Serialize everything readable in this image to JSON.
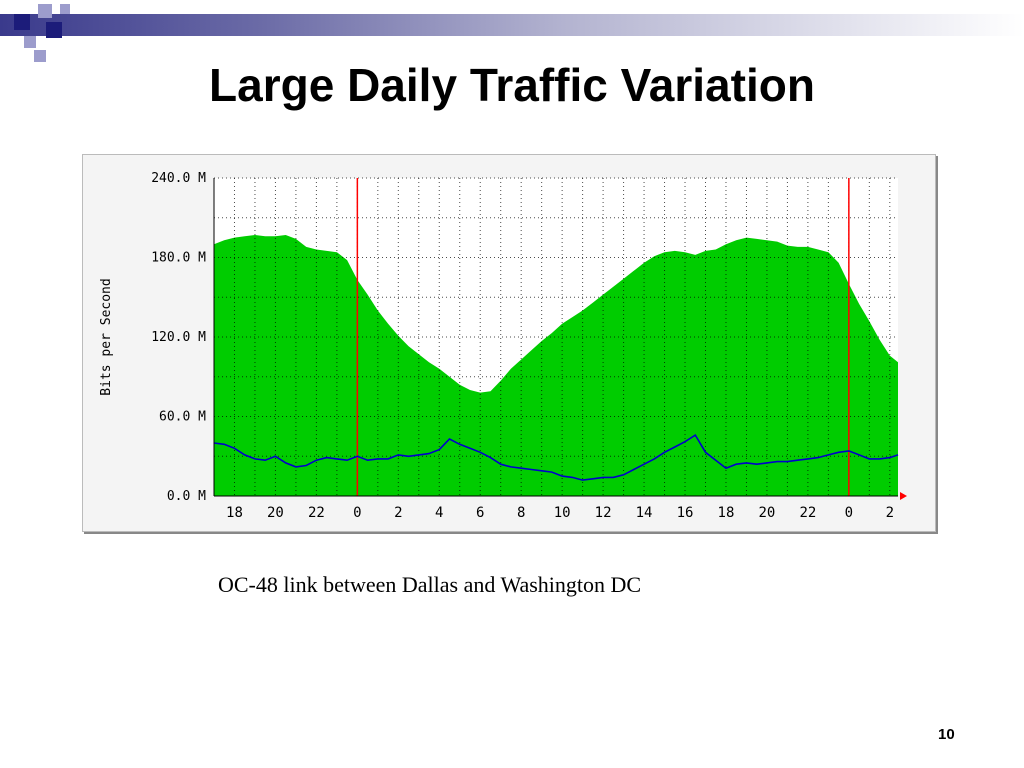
{
  "slide": {
    "title": "Large Daily Traffic Variation",
    "caption": "OC-48 link between Dallas and Washington DC",
    "page_number": "10"
  },
  "colors": {
    "deco_dark": "#1c1c7a",
    "deco_light": "#9c9ccc",
    "inbound_area": "#00cc00",
    "outbound_line": "#0000cc",
    "midnight_marker": "#ff0000",
    "grid": "#000000"
  },
  "chart_data": {
    "type": "area",
    "title": "",
    "xlabel": "",
    "ylabel": "Bits per Second",
    "ylim": [
      0,
      240
    ],
    "y_unit": "M",
    "y_ticks": [
      "0.0 M",
      "60.0 M",
      "120.0 M",
      "180.0 M",
      "240.0 M"
    ],
    "y_tick_values": [
      0,
      60,
      120,
      180,
      240
    ],
    "x_ticks": [
      "18",
      "20",
      "22",
      "0",
      "2",
      "4",
      "6",
      "8",
      "10",
      "12",
      "14",
      "16",
      "18",
      "20",
      "22",
      "0",
      "2"
    ],
    "x_tick_values": [
      18,
      20,
      22,
      24,
      26,
      28,
      30,
      32,
      34,
      36,
      38,
      40,
      42,
      44,
      46,
      48,
      50
    ],
    "x_range": [
      17,
      50.4
    ],
    "midnight_markers": [
      24,
      48
    ],
    "grid": true,
    "series": [
      {
        "fill": "area",
        "color": "#00cc00",
        "x": [
          17,
          17.5,
          18,
          18.5,
          19,
          19.5,
          20,
          20.5,
          21,
          21.5,
          22,
          22.5,
          23,
          23.5,
          24,
          24.5,
          25,
          25.5,
          26,
          26.5,
          27,
          27.5,
          28,
          28.5,
          29,
          29.5,
          30,
          30.5,
          31,
          31.5,
          32,
          32.5,
          33,
          33.5,
          34,
          34.5,
          35,
          35.5,
          36,
          36.5,
          37,
          37.5,
          38,
          38.5,
          39,
          39.5,
          40,
          40.5,
          41,
          41.5,
          42,
          42.5,
          43,
          43.5,
          44,
          44.5,
          45,
          45.5,
          46,
          46.5,
          47,
          47.5,
          48,
          48.5,
          49,
          49.5,
          50,
          50.4
        ],
        "values": [
          190,
          193,
          195,
          196,
          197,
          196,
          196,
          197,
          194,
          188,
          186,
          185,
          184,
          178,
          163,
          152,
          140,
          130,
          121,
          113,
          107,
          101,
          96,
          90,
          84,
          80,
          78,
          79,
          87,
          96,
          103,
          110,
          117,
          123,
          130,
          135,
          140,
          146,
          152,
          158,
          164,
          170,
          176,
          181,
          184,
          185,
          184,
          182,
          185,
          186,
          190,
          193,
          195,
          194,
          193,
          192,
          189,
          188,
          188,
          186,
          184,
          176,
          160,
          145,
          132,
          118,
          106,
          101
        ]
      },
      {
        "fill": "line",
        "color": "#0000cc",
        "x": [
          17,
          17.5,
          18,
          18.5,
          19,
          19.5,
          20,
          20.5,
          21,
          21.5,
          22,
          22.5,
          23,
          23.5,
          24,
          24.5,
          25,
          25.5,
          26,
          26.5,
          27,
          27.5,
          28,
          28.5,
          29,
          29.5,
          30,
          30.5,
          31,
          31.5,
          32,
          32.5,
          33,
          33.5,
          34,
          34.5,
          35,
          35.5,
          36,
          36.5,
          37,
          37.5,
          38,
          38.5,
          39,
          39.5,
          40,
          40.5,
          41,
          41.5,
          42,
          42.5,
          43,
          43.5,
          44,
          44.5,
          45,
          45.5,
          46,
          46.5,
          47,
          47.5,
          48,
          48.5,
          49,
          49.5,
          50,
          50.4
        ],
        "values": [
          40,
          39,
          36,
          31,
          28,
          27,
          30,
          25,
          22,
          23,
          27,
          29,
          28,
          27,
          30,
          27,
          28,
          28,
          31,
          30,
          31,
          32,
          35,
          43,
          39,
          36,
          33,
          29,
          24,
          22,
          21,
          20,
          19,
          18,
          15,
          14,
          12,
          13,
          14,
          14,
          16,
          20,
          24,
          28,
          33,
          37,
          41,
          46,
          33,
          27,
          21,
          24,
          25,
          24,
          25,
          26,
          26,
          27,
          28,
          29,
          31,
          33,
          34,
          31,
          28,
          28,
          29,
          31
        ]
      }
    ]
  }
}
